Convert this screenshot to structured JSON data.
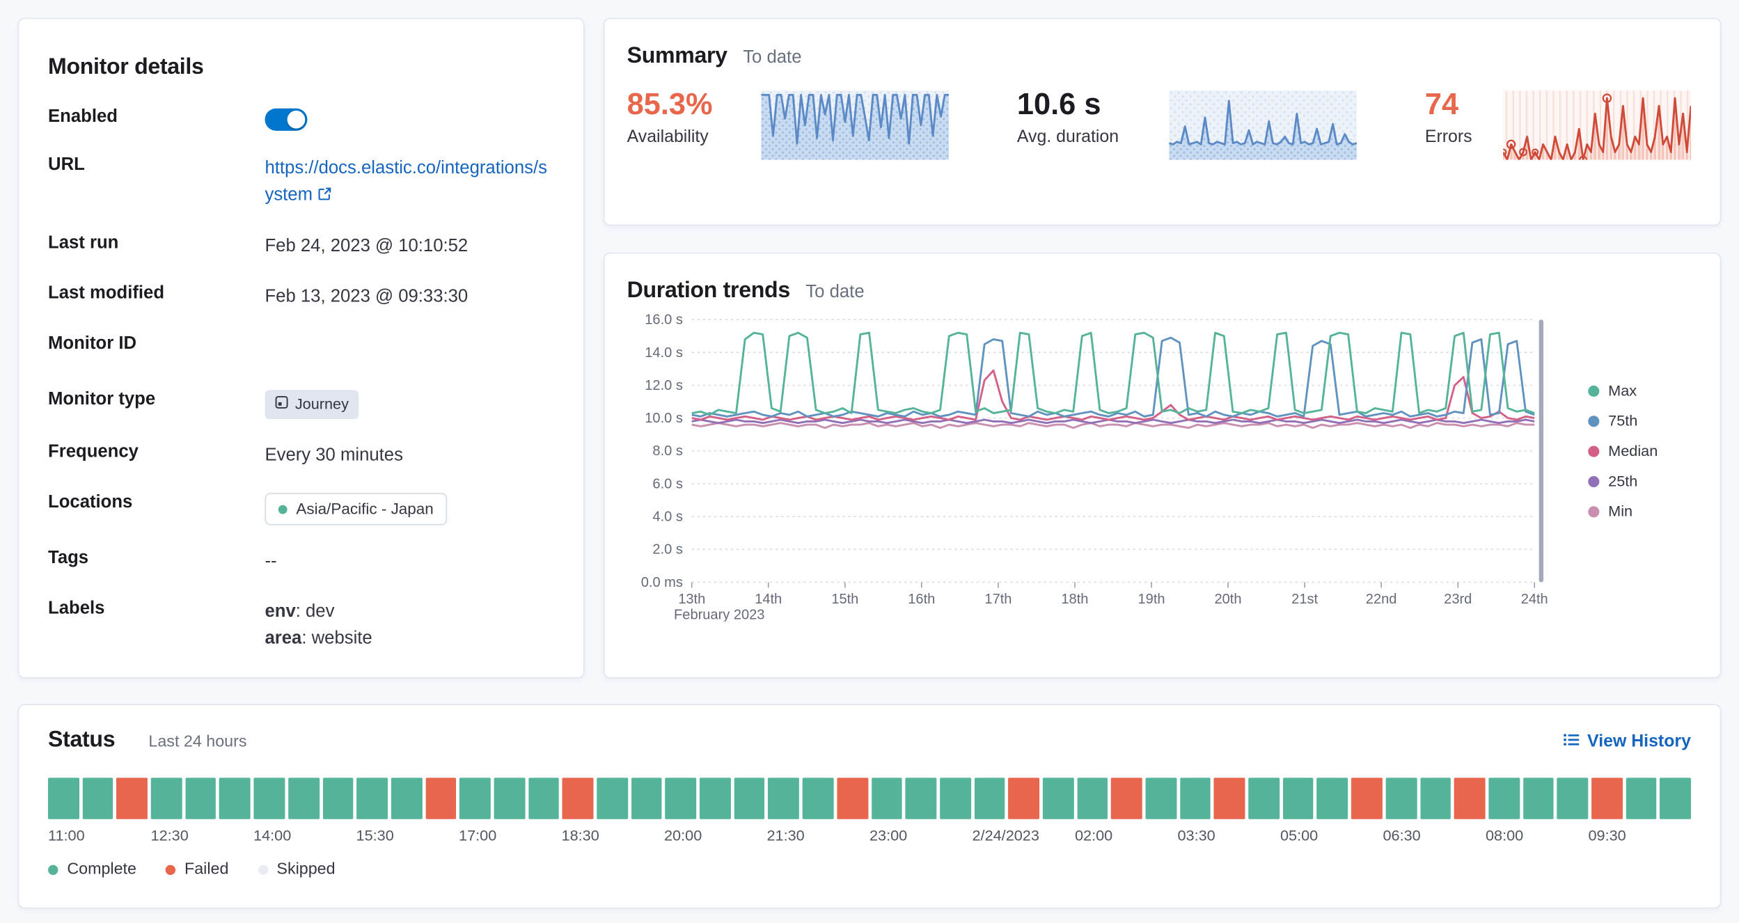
{
  "monitor_details": {
    "title": "Monitor details",
    "rows": {
      "enabled_label": "Enabled",
      "url_label": "URL",
      "url_value": "https://docs.elastic.co/integrations/system",
      "last_run_label": "Last run",
      "last_run_value": "Feb 24, 2023 @ 10:10:52",
      "last_modified_label": "Last modified",
      "last_modified_value": "Feb 13, 2023 @ 09:33:30",
      "monitor_id_label": "Monitor ID",
      "monitor_id_value": "",
      "monitor_type_label": "Monitor type",
      "monitor_type_value": "Journey",
      "frequency_label": "Frequency",
      "frequency_value": "Every 30 minutes",
      "locations_label": "Locations",
      "locations_value": "Asia/Pacific - Japan",
      "tags_label": "Tags",
      "tags_value": "--",
      "labels_label": "Labels",
      "label_env_key": "env",
      "label_env_rest": ": dev",
      "label_area_key": "area",
      "label_area_rest": ": website"
    }
  },
  "summary": {
    "title": "Summary",
    "subtitle": "To date",
    "availability": {
      "value": "85.3%",
      "label": "Availability",
      "color": "#e7664c"
    },
    "avg_duration": {
      "value": "10.6 s",
      "label": "Avg. duration"
    },
    "errors": {
      "value": "74",
      "label": "Errors",
      "color": "#e7664c"
    }
  },
  "duration_trends": {
    "title": "Duration trends",
    "subtitle": "To date"
  },
  "status": {
    "title": "Status",
    "subtitle": "Last 24 hours",
    "view_history": "View History",
    "legend": [
      {
        "label": "Complete",
        "color": "#54b399"
      },
      {
        "label": "Failed",
        "color": "#e7664c"
      },
      {
        "label": "Skipped",
        "color": "#e9edf3"
      }
    ]
  },
  "chart_data": [
    {
      "id": "availability-sparkline",
      "type": "area",
      "title": "Availability to date",
      "ylim": [
        40,
        104
      ],
      "color": "#5b8ac6",
      "fill": "#c9dbf0",
      "values": [
        100,
        100,
        100,
        62,
        100,
        100,
        78,
        100,
        100,
        55,
        100,
        72,
        100,
        100,
        60,
        100,
        82,
        100,
        58,
        100,
        100,
        75,
        100,
        62,
        100,
        100,
        80,
        58,
        100,
        100,
        70,
        100,
        60,
        100,
        100,
        78,
        100,
        55,
        100,
        100,
        72,
        100,
        100,
        62,
        100,
        80,
        100,
        100
      ]
    },
    {
      "id": "duration-sparkline",
      "type": "area",
      "title": "Avg. duration to date (s)",
      "ylim": [
        9.2,
        14.6
      ],
      "color": "#5b8ac6",
      "fill": "#c9dbf0",
      "values": [
        10.5,
        10.4,
        10.6,
        10.5,
        11.8,
        10.4,
        10.5,
        10.6,
        10.4,
        12.5,
        10.5,
        10.4,
        10.6,
        10.5,
        10.4,
        13.8,
        10.5,
        10.6,
        10.4,
        10.5,
        11.5,
        10.4,
        10.6,
        10.5,
        10.4,
        12.2,
        10.5,
        10.4,
        10.6,
        11.0,
        10.5,
        10.4,
        12.8,
        10.5,
        10.6,
        10.4,
        10.5,
        11.6,
        10.4,
        10.5,
        10.6,
        12.0,
        10.4,
        10.5,
        11.2,
        10.6,
        10.4,
        10.5
      ]
    },
    {
      "id": "errors-sparkline",
      "type": "line",
      "style": "bars",
      "title": "Errors to date",
      "ylim": [
        0,
        9
      ],
      "color": "#cf4a38",
      "bar_fill": "#f4c6bc",
      "markers": [
        [
          0,
          2.5
        ],
        [
          2,
          3.5
        ],
        [
          5,
          3
        ],
        [
          8,
          2.5
        ],
        [
          20,
          3
        ],
        [
          26,
          3.5
        ]
      ],
      "values": [
        1,
        0,
        2,
        1,
        0,
        1,
        3,
        0,
        1,
        0,
        2,
        1,
        0,
        3,
        1,
        0,
        2,
        0,
        1,
        4,
        0,
        2,
        1,
        6,
        2,
        1,
        8,
        3,
        1,
        2,
        7,
        2,
        1,
        3,
        2,
        8,
        2,
        1,
        3,
        7,
        2,
        3,
        1,
        8,
        2,
        6,
        1,
        7
      ]
    },
    {
      "id": "duration-trends",
      "type": "line",
      "title": "Duration trends",
      "subtitle": "To date",
      "ylim": [
        0,
        16
      ],
      "y_tick_values": [
        16,
        14,
        12,
        10,
        8,
        6,
        4,
        2,
        0
      ],
      "y_tick_labels": [
        "16.0 s",
        "14.0 s",
        "12.0 s",
        "10.0 s",
        "8.0 s",
        "6.0 s",
        "4.0 s",
        "2.0 s",
        "0.0 ms"
      ],
      "x_tick_values": [
        13,
        14,
        15,
        16,
        17,
        18,
        19,
        20,
        21,
        22,
        23,
        24
      ],
      "x_tick_labels": [
        "13th",
        "14th",
        "15th",
        "16th",
        "17th",
        "18th",
        "19th",
        "20th",
        "21st",
        "22nd",
        "23rd",
        "24th"
      ],
      "x_axis_secondary": "February 2023",
      "series": [
        {
          "name": "Max",
          "color": "#54b399",
          "values": [
            10.3,
            10.4,
            10.2,
            10.5,
            10.4,
            10.3,
            14.8,
            15.2,
            15.1,
            10.6,
            10.4,
            15.0,
            15.2,
            14.9,
            10.5,
            10.3,
            10.4,
            10.6,
            10.3,
            15.1,
            15.2,
            10.5,
            10.4,
            10.3,
            10.5,
            10.6,
            10.4,
            10.3,
            10.5,
            15.0,
            15.2,
            15.1,
            10.4,
            10.6,
            10.3,
            10.4,
            10.5,
            15.2,
            15.1,
            10.6,
            10.4,
            10.3,
            10.5,
            10.4,
            15.0,
            15.2,
            10.5,
            10.3,
            10.4,
            10.6,
            15.1,
            15.2,
            14.9,
            10.4,
            10.5,
            10.3,
            10.6,
            10.4,
            10.5,
            15.2,
            15.0,
            10.4,
            10.3,
            10.5,
            10.4,
            10.6,
            15.1,
            15.2,
            10.5,
            10.3,
            10.4,
            10.5,
            15.0,
            15.2,
            15.1,
            10.4,
            10.3,
            10.6,
            10.5,
            10.4,
            15.2,
            15.1,
            10.3,
            10.5,
            10.4,
            10.6,
            15.0,
            15.2,
            10.4,
            10.5,
            15.1,
            15.2,
            10.6,
            10.4,
            10.5,
            10.3
          ]
        },
        {
          "name": "75th",
          "color": "#6092c0",
          "values": [
            10.2,
            10.1,
            10.3,
            10.2,
            10.1,
            10.2,
            10.3,
            10.4,
            10.2,
            10.1,
            10.3,
            10.2,
            10.4,
            10.1,
            10.2,
            10.3,
            10.1,
            10.2,
            10.4,
            10.3,
            10.2,
            10.1,
            10.3,
            10.2,
            10.1,
            10.4,
            10.2,
            10.3,
            10.1,
            10.2,
            10.4,
            10.3,
            10.2,
            14.5,
            14.8,
            14.7,
            10.3,
            10.2,
            10.1,
            10.4,
            10.2,
            10.3,
            10.1,
            10.2,
            10.3,
            10.4,
            10.2,
            10.1,
            10.3,
            10.2,
            10.4,
            10.1,
            10.2,
            14.7,
            14.9,
            14.6,
            10.2,
            10.3,
            10.1,
            10.4,
            10.2,
            10.1,
            10.3,
            10.2,
            10.4,
            10.3,
            10.1,
            10.2,
            10.3,
            10.1,
            14.4,
            14.7,
            14.5,
            10.2,
            10.3,
            10.4,
            10.1,
            10.2,
            10.3,
            10.2,
            10.4,
            10.1,
            10.2,
            10.3,
            10.1,
            10.2,
            10.4,
            10.3,
            14.6,
            14.8,
            10.2,
            10.3,
            14.5,
            14.7,
            10.4,
            10.2
          ]
        },
        {
          "name": "Median",
          "color": "#d36086",
          "values": [
            10.0,
            9.9,
            10.1,
            10.0,
            9.9,
            10.0,
            10.1,
            10.0,
            9.9,
            10.1,
            10.0,
            9.9,
            10.0,
            10.1,
            9.9,
            10.0,
            10.1,
            10.0,
            9.9,
            10.0,
            10.1,
            9.9,
            10.0,
            10.1,
            10.0,
            9.9,
            10.0,
            10.1,
            10.0,
            9.9,
            10.1,
            10.0,
            9.9,
            12.3,
            12.9,
            11.0,
            10.0,
            9.9,
            10.1,
            10.0,
            9.9,
            10.0,
            10.1,
            10.0,
            9.9,
            10.1,
            10.0,
            9.9,
            10.0,
            10.1,
            10.0,
            9.9,
            10.0,
            10.4,
            10.8,
            10.2,
            9.9,
            10.0,
            10.1,
            10.0,
            9.9,
            10.1,
            10.0,
            9.9,
            10.0,
            10.1,
            9.9,
            10.0,
            10.1,
            10.0,
            9.9,
            10.0,
            10.1,
            10.0,
            9.9,
            10.1,
            10.0,
            9.9,
            10.0,
            10.1,
            10.0,
            9.9,
            10.0,
            10.1,
            9.9,
            10.0,
            12.0,
            12.5,
            10.3,
            10.0,
            10.1,
            10.4,
            10.0,
            9.9,
            10.1,
            10.0
          ]
        },
        {
          "name": "25th",
          "color": "#9170b8",
          "values": [
            9.8,
            9.9,
            9.8,
            9.7,
            9.8,
            9.9,
            9.8,
            9.8,
            9.7,
            9.8,
            9.9,
            9.8,
            9.7,
            9.8,
            9.8,
            9.9,
            9.8,
            9.7,
            9.8,
            9.9,
            9.8,
            9.8,
            9.7,
            9.8,
            9.9,
            9.8,
            9.7,
            9.8,
            9.8,
            9.9,
            9.8,
            9.7,
            9.8,
            9.9,
            9.8,
            9.8,
            9.7,
            9.8,
            9.9,
            9.8,
            9.7,
            9.8,
            9.8,
            9.9,
            9.8,
            9.7,
            9.8,
            9.9,
            9.8,
            9.8,
            9.7,
            9.8,
            9.9,
            9.8,
            9.7,
            9.8,
            9.9,
            9.8,
            9.8,
            9.7,
            9.8,
            9.9,
            9.8,
            9.8,
            9.7,
            9.8,
            9.9,
            9.8,
            9.8,
            9.7,
            9.8,
            9.9,
            9.8,
            9.7,
            9.8,
            9.9,
            9.8,
            9.8,
            9.7,
            9.8,
            9.9,
            9.8,
            9.7,
            9.8,
            9.9,
            9.8,
            9.8,
            9.7,
            9.8,
            9.9,
            9.8,
            9.7,
            9.8,
            9.8,
            9.9,
            9.8
          ]
        },
        {
          "name": "Min",
          "color": "#ca8eae",
          "values": [
            9.6,
            9.5,
            9.6,
            9.7,
            9.6,
            9.5,
            9.6,
            9.6,
            9.5,
            9.6,
            9.7,
            9.6,
            9.5,
            9.6,
            9.6,
            9.4,
            9.6,
            9.5,
            9.6,
            9.6,
            9.7,
            9.5,
            9.6,
            9.5,
            9.6,
            9.7,
            9.5,
            9.6,
            9.4,
            9.6,
            9.5,
            9.6,
            9.7,
            9.6,
            9.5,
            9.6,
            9.6,
            9.5,
            9.7,
            9.6,
            9.5,
            9.6,
            9.6,
            9.4,
            9.6,
            9.7,
            9.5,
            9.6,
            9.6,
            9.5,
            9.7,
            9.6,
            9.5,
            9.6,
            9.6,
            9.5,
            9.4,
            9.6,
            9.5,
            9.6,
            9.7,
            9.6,
            9.5,
            9.6,
            9.6,
            9.7,
            9.5,
            9.6,
            9.5,
            9.6,
            9.4,
            9.6,
            9.5,
            9.6,
            9.6,
            9.7,
            9.6,
            9.5,
            9.6,
            9.5,
            9.6,
            9.4,
            9.6,
            9.5,
            9.7,
            9.6,
            9.6,
            9.5,
            9.6,
            9.5,
            9.6,
            9.6,
            9.5,
            9.7,
            9.6,
            9.6
          ]
        }
      ]
    },
    {
      "id": "status-timeline",
      "type": "heatmap",
      "title": "Status last 24 hours",
      "categories": [
        "11:00",
        "12:30",
        "14:00",
        "15:30",
        "17:00",
        "18:30",
        "20:00",
        "21:30",
        "23:00",
        "2/24/2023",
        "02:00",
        "03:30",
        "05:00",
        "06:30",
        "08:00",
        "09:30"
      ],
      "colors": {
        "complete": "#54b399",
        "failed": "#e7664c",
        "skipped": "#e9edf3"
      },
      "statuses": [
        "complete",
        "complete",
        "failed",
        "complete",
        "complete",
        "complete",
        "complete",
        "complete",
        "complete",
        "complete",
        "complete",
        "failed",
        "complete",
        "complete",
        "complete",
        "failed",
        "complete",
        "complete",
        "complete",
        "complete",
        "complete",
        "complete",
        "complete",
        "failed",
        "complete",
        "complete",
        "complete",
        "complete",
        "failed",
        "complete",
        "complete",
        "failed",
        "complete",
        "complete",
        "failed",
        "complete",
        "complete",
        "complete",
        "failed",
        "complete",
        "complete",
        "failed",
        "complete",
        "complete",
        "complete",
        "failed",
        "complete",
        "complete"
      ]
    }
  ]
}
